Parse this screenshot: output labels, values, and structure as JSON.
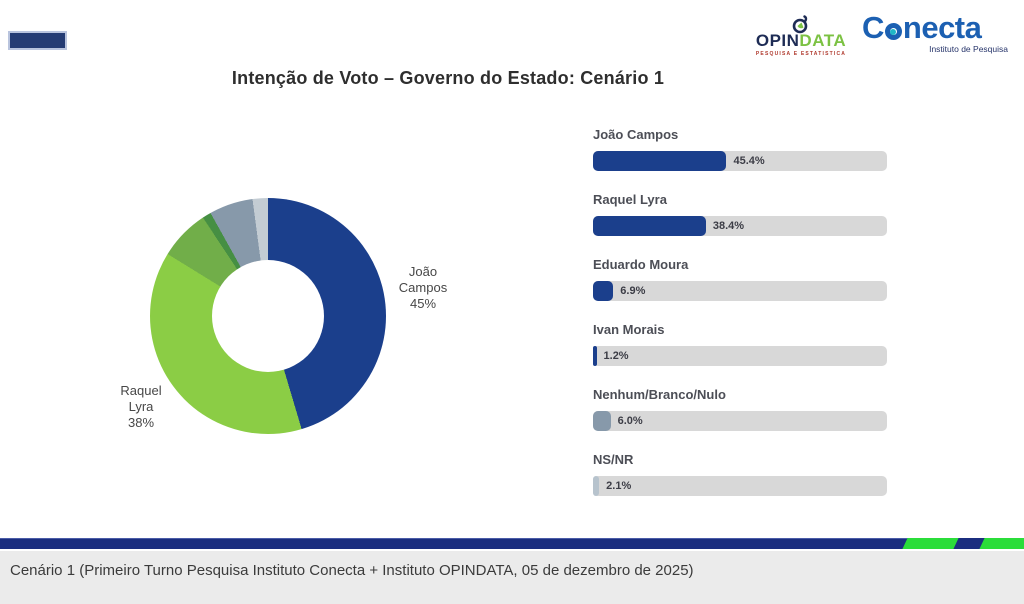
{
  "title": "Intenção de Voto – Governo do Estado: Cenário 1",
  "header": {
    "opindata_logo": {
      "text_opin": "OPIN",
      "text_data": "DATA",
      "subtext": "PESQUISA E ESTATISTICA",
      "icon": "magnifier-icon"
    },
    "conecta_logo": {
      "text_c": "C",
      "text_rest": "necta",
      "subtext": "Instituto de Pesquisa"
    }
  },
  "chart_data": [
    {
      "type": "pie",
      "subtype": "donut",
      "title": "Intenção de Voto – Governo do Estado: Cenário 1",
      "categories": [
        "João Campos",
        "Raquel Lyra",
        "Eduardo Moura",
        "Ivan Morais",
        "Nenhum/Branco/Nulo",
        "NS/NR"
      ],
      "values": [
        45.4,
        38.4,
        6.9,
        1.2,
        6.0,
        2.1
      ],
      "colors": [
        "#1b3f8c",
        "#8bcd45",
        "#71ae49",
        "#468f43",
        "#8799aa",
        "#c3ccd3"
      ],
      "start_angle_deg": 0,
      "direction": "clockwise",
      "visible_labels": [
        {
          "for": "João Campos",
          "lines": [
            "João",
            "Campos",
            "45%"
          ]
        },
        {
          "for": "Raquel Lyra",
          "lines": [
            "Raquel",
            "Lyra",
            "38%"
          ]
        }
      ]
    },
    {
      "type": "bar",
      "orientation": "horizontal",
      "axis_max": 100,
      "categories": [
        "João Campos",
        "Raquel Lyra",
        "Eduardo Moura",
        "Ivan Morais",
        "Nenhum/Branco/Nulo",
        "NS/NR"
      ],
      "values": [
        45.4,
        38.4,
        6.9,
        1.2,
        6.0,
        2.1
      ],
      "value_labels": [
        "45.4%",
        "38.4%",
        "6.9%",
        "1.2%",
        "6.0%",
        "2.1%"
      ],
      "bar_colors": [
        "#1b3f8c",
        "#1b3f8c",
        "#1b3f8c",
        "#1b3f8c",
        "#8799aa",
        "#b7c3cd"
      ]
    }
  ],
  "footer": {
    "caption": "Cenário 1 (Primeiro Turno Pesquisa Instituto Conecta + Instituto OPINDATA, 05 de dezembro de 2025)"
  },
  "colors": {
    "navy": "#1b3f8c",
    "navy_dark": "#253c74",
    "stripe_navy": "#1b2e7f",
    "stripe_green": "#2bdd3a",
    "track_gray": "#d8d8d8",
    "footer_bg": "#ebebeb",
    "opindata_green": "#7cc243",
    "conecta_blue": "#1c60b2",
    "conecta_teal": "#20b7c6"
  }
}
